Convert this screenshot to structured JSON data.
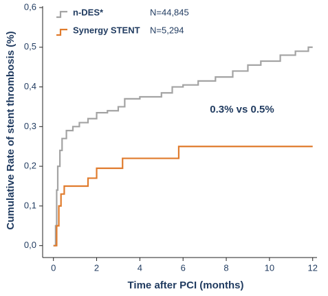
{
  "chart_data": {
    "type": "step",
    "y_label": "Cumulative Rate of stent thrombosis (%)",
    "x_label": "Time after PCI (months)",
    "annotation": "0.3% vs 0.5%",
    "xlim": [
      -0.5,
      12.2
    ],
    "xticks": [
      0,
      2,
      4,
      6,
      8,
      10,
      12
    ],
    "ylim": [
      -0.03,
      0.6
    ],
    "yticks": [
      {
        "value": 0,
        "label": "0,0"
      },
      {
        "value": 0.1,
        "label": "0,1"
      },
      {
        "value": 0.2,
        "label": "0,2"
      },
      {
        "value": 0.3,
        "label": "0,3"
      },
      {
        "value": 0.4,
        "label": "0,4"
      },
      {
        "value": 0.5,
        "label": "0,5"
      },
      {
        "value": 0.6,
        "label": "0,6"
      }
    ],
    "series": [
      {
        "name": "n-DES*",
        "n_label": "N=44,845",
        "color": "#a3a3a3",
        "x": [
          0,
          0.1,
          0.15,
          0.2,
          0.3,
          0.4,
          0.6,
          0.9,
          1.2,
          1.6,
          2,
          2.5,
          3,
          3.3,
          4,
          5,
          5.5,
          6,
          6.7,
          7.5,
          8.3,
          9,
          9.6,
          10.5,
          11.2,
          11.8,
          12
        ],
        "values": [
          0,
          0.05,
          0.14,
          0.2,
          0.24,
          0.27,
          0.29,
          0.3,
          0.31,
          0.32,
          0.335,
          0.34,
          0.35,
          0.37,
          0.375,
          0.385,
          0.4,
          0.405,
          0.415,
          0.425,
          0.44,
          0.455,
          0.465,
          0.48,
          0.49,
          0.5,
          0.5
        ]
      },
      {
        "name": "Synergy STENT",
        "n_label": "N=5,294",
        "color": "#e07b2c",
        "x": [
          0,
          0.15,
          0.25,
          0.35,
          0.5,
          1.6,
          2,
          3.2,
          5.8,
          12
        ],
        "values": [
          0,
          0.05,
          0.1,
          0.13,
          0.15,
          0.17,
          0.195,
          0.22,
          0.25,
          0.25
        ]
      }
    ]
  }
}
